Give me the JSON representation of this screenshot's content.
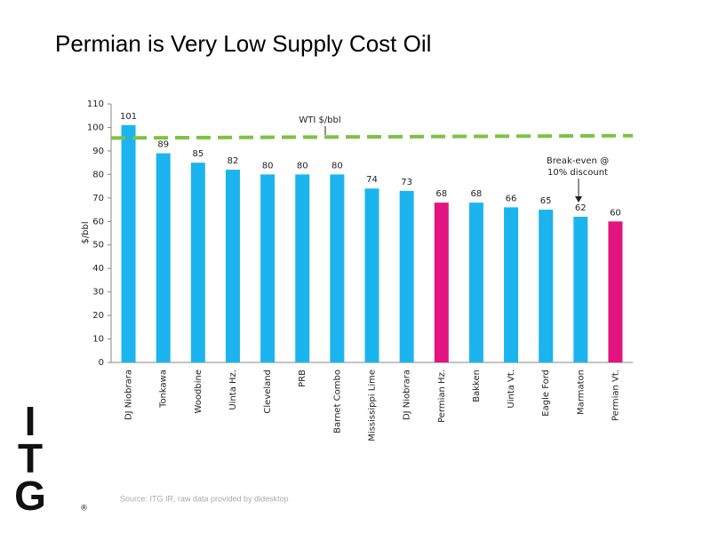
{
  "chart_data": {
    "type": "bar",
    "title": "Permian is Very Low Supply Cost Oil",
    "ylabel": "$/bbl",
    "categories": [
      "DJ Niobrara",
      "Tonkawa",
      "Woodbine",
      "Uinta Hz.",
      "Cleveland",
      "PRB",
      "Barnet Combo",
      "Mississippi Lime",
      "DJ Niobrara",
      "Permian Hz.",
      "Bakken",
      "Uinta Vt.",
      "Eagle Ford",
      "Marmaton",
      "Permian Vt."
    ],
    "values": [
      101,
      89,
      85,
      82,
      80,
      80,
      80,
      74,
      73,
      68,
      68,
      66,
      65,
      62,
      60
    ],
    "colors": [
      "#1cb4ee",
      "#1cb4ee",
      "#1cb4ee",
      "#1cb4ee",
      "#1cb4ee",
      "#1cb4ee",
      "#1cb4ee",
      "#1cb4ee",
      "#1cb4ee",
      "#e3137f",
      "#1cb4ee",
      "#1cb4ee",
      "#1cb4ee",
      "#1cb4ee",
      "#e3137f"
    ],
    "ylim": [
      0,
      110
    ],
    "yticks": [
      0,
      10,
      20,
      30,
      40,
      50,
      60,
      70,
      80,
      90,
      100,
      110
    ],
    "reference_line": {
      "label": "WTI $/bbl",
      "start": 95.5,
      "end": 96.5,
      "color": "#7dc242"
    },
    "annotation_lines": [
      "Break-even @",
      "10% discount"
    ],
    "source": "Source: ITG IR, raw data provided by didesktop",
    "logo": [
      "I",
      "T",
      "G"
    ],
    "logo_mark": "®"
  }
}
